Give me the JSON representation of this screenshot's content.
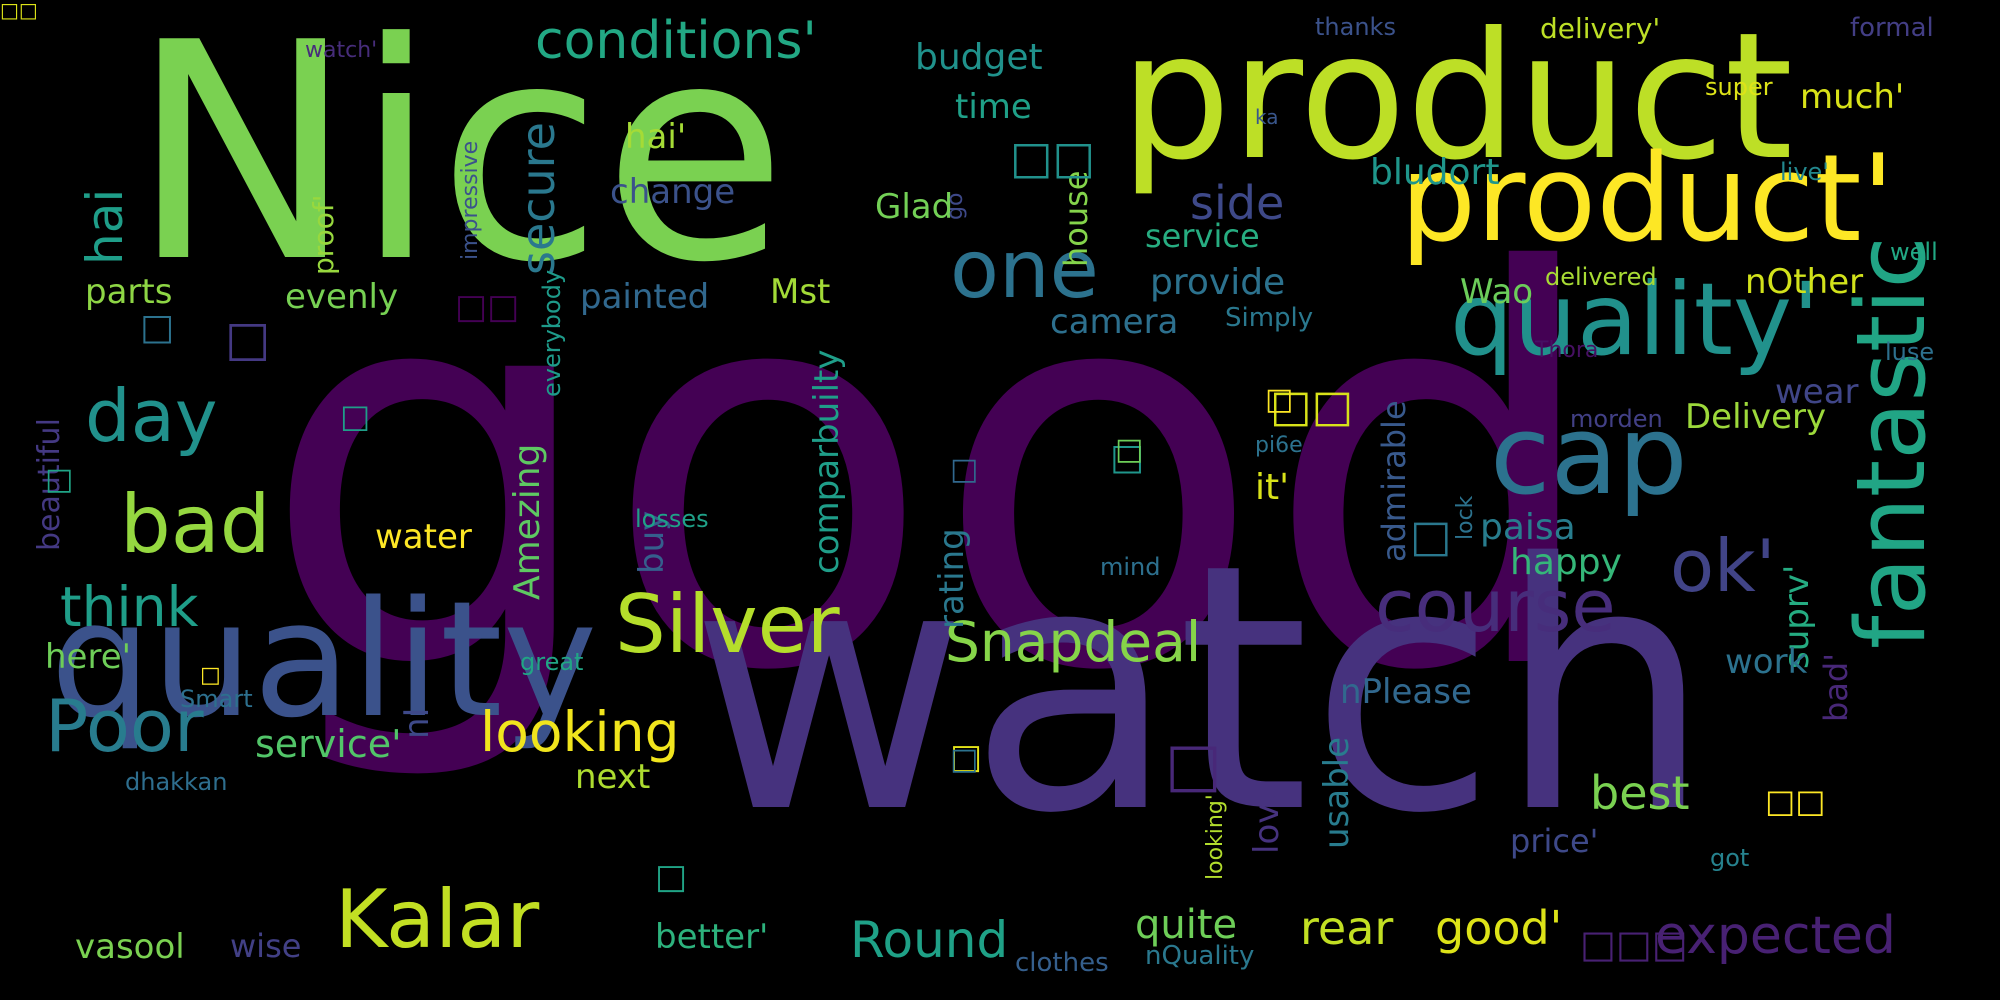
{
  "words": [
    {
      "text": "good",
      "color": "#440154"
    },
    {
      "text": "watch",
      "color": "#46327e"
    },
    {
      "text": "Nice",
      "color": "#7ad151"
    },
    {
      "text": "product",
      "color": "#bddf26"
    },
    {
      "text": "product'",
      "color": "#fde725"
    },
    {
      "text": "quality",
      "color": "#3b528b"
    },
    {
      "text": "quality'",
      "color": "#21918c"
    },
    {
      "text": "fantastic",
      "color": "#21a585"
    },
    {
      "text": "cap",
      "color": "#2c728e"
    },
    {
      "text": "Silver",
      "color": "#b5de2b"
    },
    {
      "text": "Kalar",
      "color": "#c2df23"
    },
    {
      "text": "course",
      "color": "#472d7b"
    },
    {
      "text": "one",
      "color": "#2c728e"
    },
    {
      "text": "ok'",
      "color": "#414487"
    },
    {
      "text": "bad",
      "color": "#95d840"
    },
    {
      "text": "Poor",
      "color": "#287c8e"
    },
    {
      "text": "day",
      "color": "#21918c"
    },
    {
      "text": "Snapdeal",
      "color": "#86d549"
    },
    {
      "text": "think",
      "color": "#1f9e89"
    },
    {
      "text": "looking",
      "color": "#f1e51d"
    },
    {
      "text": "conditions'",
      "color": "#22a884"
    },
    {
      "text": "hai",
      "color": "#1f9e89"
    },
    {
      "text": "secure",
      "color": "#2a788e"
    },
    {
      "text": "expected",
      "color": "#482173"
    },
    {
      "text": "Round",
      "color": "#1fa187"
    },
    {
      "text": "rear",
      "color": "#c2df23"
    },
    {
      "text": "good'",
      "color": "#dde318"
    },
    {
      "text": "quite",
      "color": "#6ece58"
    },
    {
      "text": "best",
      "color": "#7ad151"
    },
    {
      "text": "side",
      "color": "#3e4989"
    },
    {
      "text": "here'",
      "color": "#6ece58"
    },
    {
      "text": "service'",
      "color": "#52c569"
    },
    {
      "text": "budget",
      "color": "#20928c"
    },
    {
      "text": "time",
      "color": "#1fa088"
    },
    {
      "text": "much'",
      "color": "#d8e219"
    },
    {
      "text": "hai'",
      "color": "#a5db36"
    },
    {
      "text": "change",
      "color": "#3b528b"
    },
    {
      "text": "Glad",
      "color": "#73d056"
    },
    {
      "text": "bludort",
      "color": "#1f968b"
    },
    {
      "text": "service",
      "color": "#27ad81"
    },
    {
      "text": "provide",
      "color": "#2c728e"
    },
    {
      "text": "painted",
      "color": "#31688e"
    },
    {
      "text": "Mst",
      "color": "#a2da37"
    },
    {
      "text": "parts",
      "color": "#8ed645"
    },
    {
      "text": "evenly",
      "color": "#77d153"
    },
    {
      "text": "Wao",
      "color": "#6ccd5a"
    },
    {
      "text": "nOther",
      "color": "#d2e21b"
    },
    {
      "text": "Delivery",
      "color": "#9dd93b"
    },
    {
      "text": "camera",
      "color": "#2d708e"
    },
    {
      "text": "wear",
      "color": "#404688"
    },
    {
      "text": "it'",
      "color": "#d8e219"
    },
    {
      "text": "paisa",
      "color": "#287d8e"
    },
    {
      "text": "happy",
      "color": "#35b779"
    },
    {
      "text": "water",
      "color": "#fde725"
    },
    {
      "text": "nI",
      "color": "#3e4989"
    },
    {
      "text": "buy",
      "color": "#355f8d"
    },
    {
      "text": "rating",
      "color": "#2a788e"
    },
    {
      "text": "Amezing",
      "color": "#5ec962"
    },
    {
      "text": "comparbuilty",
      "color": "#1f9e89"
    },
    {
      "text": "admirable",
      "color": "#38598c"
    },
    {
      "text": "suprv'",
      "color": "#25ac82"
    },
    {
      "text": "bad'",
      "color": "#482878"
    },
    {
      "text": "work",
      "color": "#2c728e"
    },
    {
      "text": "nPlease",
      "color": "#31688e"
    },
    {
      "text": "next",
      "color": "#addc30"
    },
    {
      "text": "usable",
      "color": "#287c8e"
    },
    {
      "text": "love",
      "color": "#46327e"
    },
    {
      "text": "price'",
      "color": "#3e4989"
    },
    {
      "text": "better'",
      "color": "#2db27d"
    },
    {
      "text": "vasool",
      "color": "#7ad151"
    },
    {
      "text": "wise",
      "color": "#424086"
    },
    {
      "text": "beautiful",
      "color": "#443983"
    },
    {
      "text": "proof'",
      "color": "#98d83e"
    },
    {
      "text": "impressive",
      "color": "#3b528b"
    },
    {
      "text": "everybody",
      "color": "#1e9b8a"
    },
    {
      "text": "house",
      "color": "#84d44b"
    },
    {
      "text": "watch'",
      "color": "#472d7b"
    },
    {
      "text": "thanks",
      "color": "#3b528b"
    },
    {
      "text": "delivery'",
      "color": "#bddf26"
    },
    {
      "text": "formal",
      "color": "#433e85"
    },
    {
      "text": "super",
      "color": "#dde318"
    },
    {
      "text": "ka",
      "color": "#39568c"
    },
    {
      "text": "live'",
      "color": "#23888e"
    },
    {
      "text": "well",
      "color": "#22a884"
    },
    {
      "text": "delivered",
      "color": "#a8db34"
    },
    {
      "text": "luse",
      "color": "#2d708e"
    },
    {
      "text": "Simply",
      "color": "#2a788e"
    },
    {
      "text": "morden",
      "color": "#424086"
    },
    {
      "text": "Thora",
      "color": "#471063"
    },
    {
      "text": "pi6e",
      "color": "#2c728e"
    },
    {
      "text": "lock",
      "color": "#2c728e"
    },
    {
      "text": "losses",
      "color": "#1fa188"
    },
    {
      "text": "mind",
      "color": "#2d708e"
    },
    {
      "text": "great",
      "color": "#21a585"
    },
    {
      "text": "Smart",
      "color": "#2d708e"
    },
    {
      "text": "dhakkan",
      "color": "#2e6e8e"
    },
    {
      "text": "looking'",
      "color": "#b2dd2d"
    },
    {
      "text": "got",
      "color": "#26828e"
    },
    {
      "text": "clothes",
      "color": "#355f8d"
    },
    {
      "text": "nQuality",
      "color": "#2a788e"
    },
    {
      "text": "go",
      "color": "#3e4989"
    },
    {
      "text": "□□",
      "color": "#21918c"
    },
    {
      "text": "□",
      "color": "#443983"
    },
    {
      "text": "□□",
      "color": "#440154"
    },
    {
      "text": "□",
      "color": "#2c728e"
    },
    {
      "text": "□",
      "color": "#1f9e89"
    },
    {
      "text": "□",
      "color": "#20a486"
    },
    {
      "text": "□□",
      "color": "#d8e219"
    },
    {
      "text": "□",
      "color": "#1f968b"
    },
    {
      "text": "□",
      "color": "#fde725"
    },
    {
      "text": "□",
      "color": "#31688e"
    },
    {
      "text": "□",
      "color": "#6ece58"
    },
    {
      "text": "□",
      "color": "#2a788e"
    },
    {
      "text": "□",
      "color": "#482878"
    },
    {
      "text": "□",
      "color": "#e5e419"
    },
    {
      "text": "□□",
      "color": "#fde725"
    },
    {
      "text": "□",
      "color": "#fde725"
    },
    {
      "text": "□",
      "color": "#20a486"
    },
    {
      "text": "□□□",
      "color": "#482173"
    },
    {
      "text": "□",
      "color": "#2c728e"
    },
    {
      "text": "□□",
      "color": "#dde318"
    }
  ]
}
